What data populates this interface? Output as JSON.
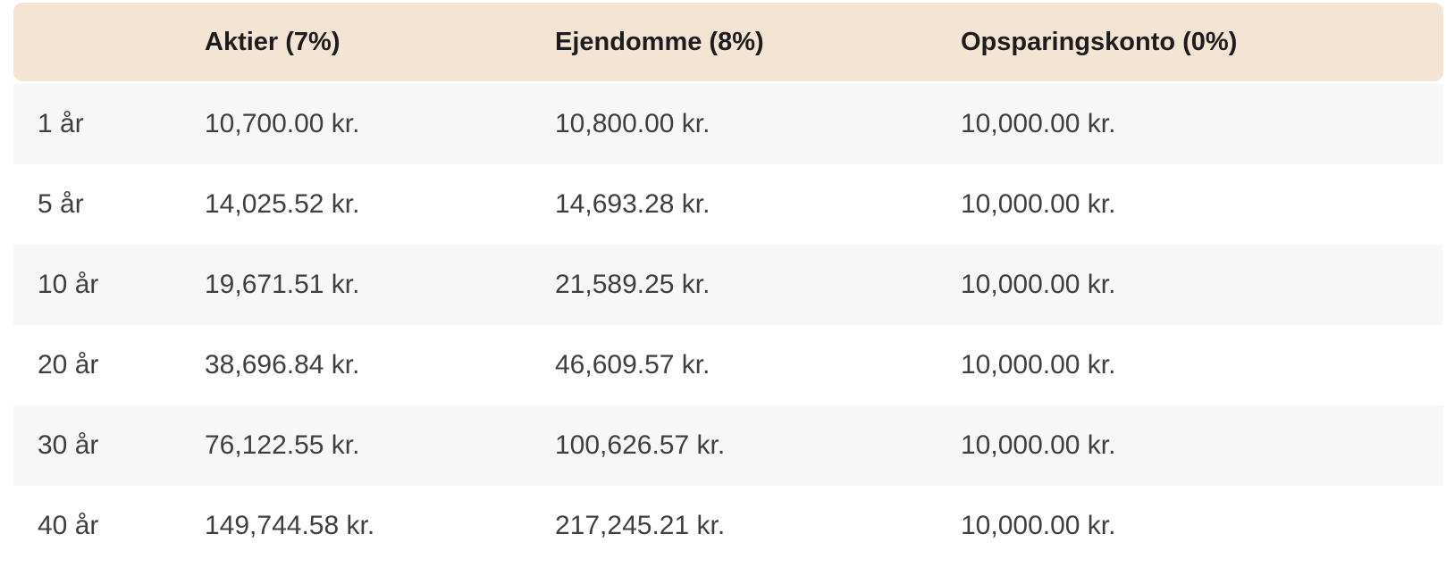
{
  "chart_data": {
    "type": "table",
    "columns": [
      "",
      "Aktier (7%)",
      "Ejendomme (8%)",
      "Opsparingskonto (0%)"
    ],
    "rows": [
      [
        "1 år",
        "10,700.00 kr.",
        "10,800.00 kr.",
        "10,000.00 kr."
      ],
      [
        "5 år",
        "14,025.52 kr.",
        "14,693.28 kr.",
        "10,000.00 kr."
      ],
      [
        "10 år",
        "19,671.51 kr.",
        "21,589.25 kr.",
        "10,000.00 kr."
      ],
      [
        "20 år",
        "38,696.84 kr.",
        "46,609.57 kr.",
        "10,000.00 kr."
      ],
      [
        "30 år",
        "76,122.55 kr.",
        "100,626.57 kr.",
        "10,000.00 kr."
      ],
      [
        "40 år",
        "149,744.58 kr.",
        "217,245.21 kr.",
        "10,000.00 kr."
      ]
    ],
    "layout": {
      "legend": "none",
      "grid": "off",
      "row_striping": "odd rows shaded"
    }
  },
  "colors": {
    "header_background": "#f3e4d4",
    "row_alt_background": "#f7f7f7",
    "row_background": "#ffffff",
    "header_text": "#1d1d1f",
    "body_text": "#3f3f41",
    "page_background": "#ffffff"
  }
}
